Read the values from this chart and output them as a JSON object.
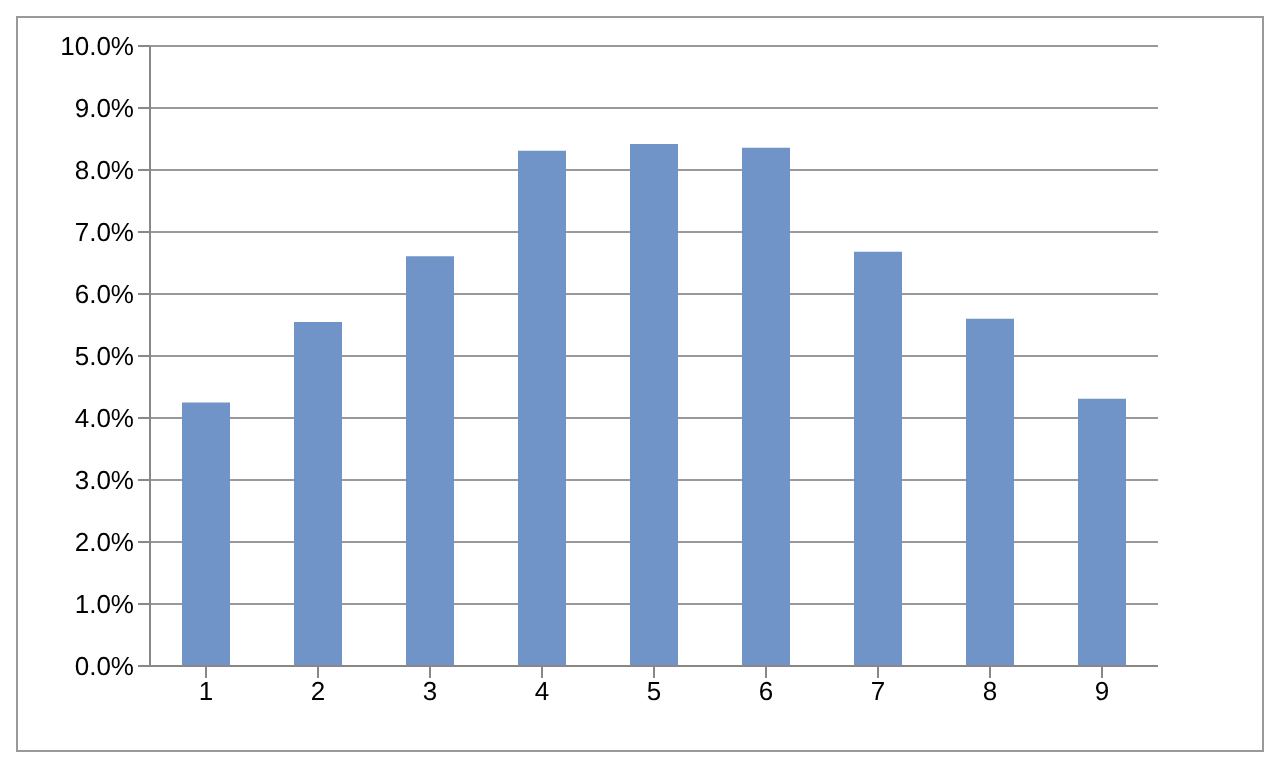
{
  "chart_data": {
    "type": "bar",
    "categories": [
      "1",
      "2",
      "3",
      "4",
      "5",
      "6",
      "7",
      "8",
      "9"
    ],
    "values": [
      4.25,
      5.55,
      6.61,
      8.31,
      8.42,
      8.36,
      6.68,
      5.6,
      4.31
    ],
    "color": "#7094c8",
    "ylim": [
      0,
      10
    ],
    "yticks": [
      {
        "value": 0,
        "label": "0.0%"
      },
      {
        "value": 1,
        "label": "1.0%"
      },
      {
        "value": 2,
        "label": "2.0%"
      },
      {
        "value": 3,
        "label": "3.0%"
      },
      {
        "value": 4,
        "label": "4.0%"
      },
      {
        "value": 5,
        "label": "5.0%"
      },
      {
        "value": 6,
        "label": "6.0%"
      },
      {
        "value": 7,
        "label": "7.0%"
      },
      {
        "value": 8,
        "label": "8.0%"
      },
      {
        "value": 9,
        "label": "9.0%"
      },
      {
        "value": 10,
        "label": "10.0%"
      }
    ],
    "grid": "y",
    "legend": false
  }
}
